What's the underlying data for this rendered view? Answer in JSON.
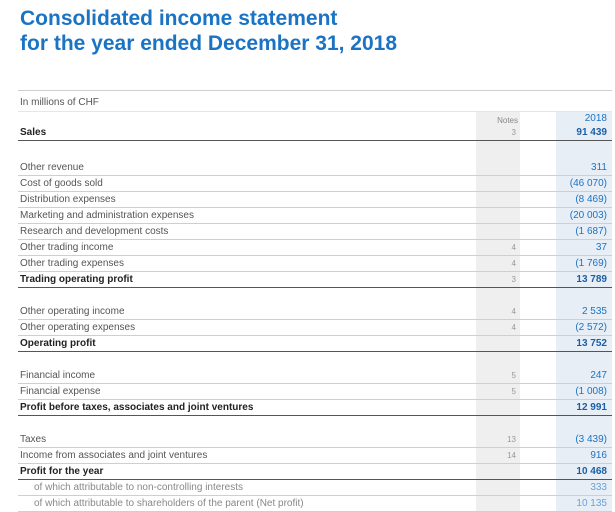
{
  "header": {
    "title_line1": "Consolidated income statement",
    "title_line2": "for the year ended December 31, 2018",
    "units": "In millions of CHF",
    "notes_label": "Notes",
    "year_label": "2018"
  },
  "rows": [
    {
      "label": "Sales",
      "note": "3",
      "value": "91 439",
      "style": "bold"
    },
    {
      "label": "Other revenue",
      "note": "",
      "value": "311",
      "style": "normal"
    },
    {
      "label": "Cost of goods sold",
      "note": "",
      "value": "(46 070)",
      "style": "normal"
    },
    {
      "label": "Distribution expenses",
      "note": "",
      "value": "(8 469)",
      "style": "normal"
    },
    {
      "label": "Marketing and administration expenses",
      "note": "",
      "value": "(20 003)",
      "style": "normal"
    },
    {
      "label": "Research and development costs",
      "note": "",
      "value": "(1 687)",
      "style": "normal"
    },
    {
      "label": "Other trading income",
      "note": "4",
      "value": "37",
      "style": "normal"
    },
    {
      "label": "Other trading expenses",
      "note": "4",
      "value": "(1 769)",
      "style": "normal"
    },
    {
      "label": "Trading operating profit",
      "note": "3",
      "value": "13 789",
      "style": "bold"
    },
    {
      "label": "Other operating income",
      "note": "4",
      "value": "2 535",
      "style": "normal"
    },
    {
      "label": "Other operating expenses",
      "note": "4",
      "value": "(2 572)",
      "style": "normal"
    },
    {
      "label": "Operating profit",
      "note": "",
      "value": "13 752",
      "style": "bold"
    },
    {
      "label": "Financial income",
      "note": "5",
      "value": "247",
      "style": "normal"
    },
    {
      "label": "Financial expense",
      "note": "5",
      "value": "(1 008)",
      "style": "normal"
    },
    {
      "label": "Profit before taxes, associates and joint ventures",
      "note": "",
      "value": "12 991",
      "style": "bold"
    },
    {
      "label": "Taxes",
      "note": "13",
      "value": "(3 439)",
      "style": "normal"
    },
    {
      "label": "Income from associates and joint ventures",
      "note": "14",
      "value": "916",
      "style": "normal"
    },
    {
      "label": "Profit for the year",
      "note": "",
      "value": "10 468",
      "style": "bold"
    },
    {
      "label": "of which attributable to non-controlling interests",
      "note": "",
      "value": "333",
      "style": "sub"
    },
    {
      "label": "of which attributable to shareholders of the parent (Net profit)",
      "note": "",
      "value": "10 135",
      "style": "sub"
    }
  ]
}
